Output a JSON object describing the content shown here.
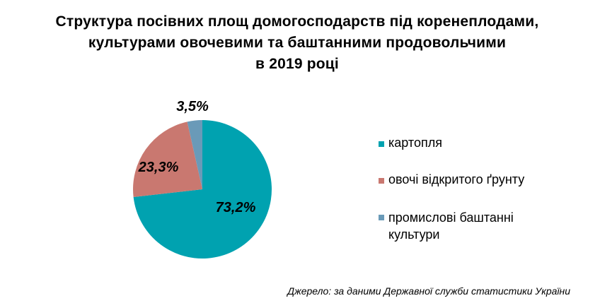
{
  "chart_data": {
    "type": "pie",
    "title_lines": [
      "Структура посівних площ домогосподарств під коренеплодами,",
      "культурами овочевими та баштанними продовольчими",
      "в 2019 році"
    ],
    "categories": [
      "картопля",
      "овочі відкритого ґрунту",
      "промислові баштанні культури"
    ],
    "values": [
      73.2,
      23.3,
      3.5
    ],
    "unit": "%",
    "data_labels": [
      "73,2%",
      "23,3%",
      "3,5%"
    ],
    "colors": [
      "#00a2b0",
      "#c97870",
      "#6a9ab8"
    ],
    "legend_placement": "right"
  },
  "legend": {
    "items": [
      {
        "label": "картопля",
        "color": "#00a2b0"
      },
      {
        "label": "овочі відкритого ґрунту",
        "color": "#c97870"
      },
      {
        "label": "промислові баштанні культури",
        "color": "#6a9ab8"
      }
    ]
  },
  "source": "Джерело: за даними Державної служби статистики України"
}
